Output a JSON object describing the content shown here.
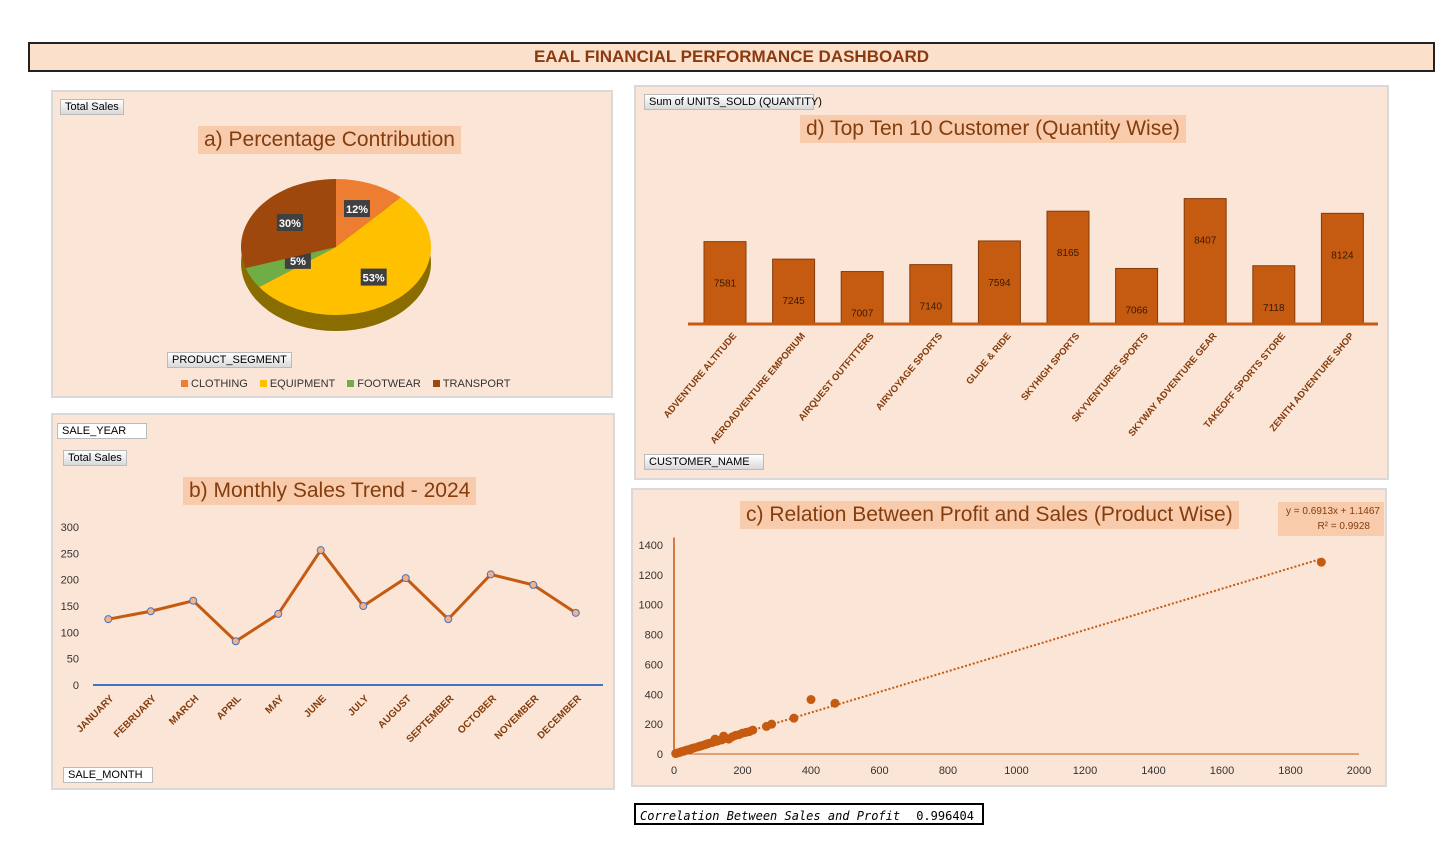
{
  "title": "EAAL FINANCIAL PERFORMANCE DASHBOARD",
  "correlation": {
    "label": "Correlation Between Sales and Profit",
    "value": "0.996404"
  },
  "fields": {
    "pie_value": "Total Sales",
    "pie_axis": "PRODUCT_SEGMENT",
    "line_filter": "SALE_YEAR",
    "line_value": "Total Sales",
    "line_axis": "SALE_MONTH",
    "bar_value": "Sum of UNITS_SOLD (QUANTITY)",
    "bar_axis": "CUSTOMER_NAME"
  },
  "chart_data": [
    {
      "type": "pie",
      "title": "a) Percentage Contribution",
      "categories": [
        "CLOTHING",
        "EQUIPMENT",
        "FOOTWEAR",
        "TRANSPORT"
      ],
      "values": [
        12,
        53,
        5,
        30
      ],
      "labels": [
        "12%",
        "53%",
        "5%",
        "30%"
      ],
      "colors": [
        "#ed7d31",
        "#ffc000",
        "#70ad47",
        "#9e480e"
      ],
      "legend": "bottom"
    },
    {
      "type": "line",
      "title": "b) Monthly Sales Trend -  2024",
      "categories": [
        "JANUARY",
        "FEBRUARY",
        "MARCH",
        "APRIL",
        "MAY",
        "JUNE",
        "JULY",
        "AUGUST",
        "SEPTEMBER",
        "OCTOBER",
        "NOVEMBER",
        "DECEMBER"
      ],
      "values": [
        125,
        140,
        160,
        83,
        135,
        256,
        150,
        203,
        125,
        210,
        190,
        137
      ],
      "ylim": [
        0,
        300
      ],
      "yticks": [
        0,
        50,
        100,
        150,
        200,
        250,
        300
      ],
      "color": "#c55a11"
    },
    {
      "type": "bar",
      "title": "d) Top Ten 10 Customer (Quantity Wise)",
      "categories": [
        "ADVENTURE ALTITUDE",
        "AEROADVENTURE EMPORIUM",
        "AIRQUEST OUTFITTERS",
        "AIRVOYAGE SPORTS",
        "GLIDE & RIDE",
        "SKYHIGH SPORTS",
        "SKYVENTURES SPORTS",
        "SKYWAY ADVENTURE GEAR",
        "TAKEOFF SPORTS STORE",
        "ZENITH ADVENTURE SHOP"
      ],
      "values": [
        7581,
        7245,
        7007,
        7140,
        7594,
        8165,
        7066,
        8407,
        7118,
        8124
      ],
      "ylim": [
        6000,
        8800
      ],
      "color": "#c55a11"
    },
    {
      "type": "scatter",
      "title": "c) Relation Between Profit and Sales (Product Wise)",
      "trendline": {
        "equation": "y = 0.6913x + 1.1467",
        "r2": "R² = 0.9928",
        "slope": 0.6913,
        "intercept": 1.1467
      },
      "xlim": [
        0,
        2000
      ],
      "ylim": [
        0,
        1400
      ],
      "xticks": [
        0,
        200,
        400,
        600,
        800,
        1000,
        1200,
        1400,
        1600,
        1800,
        2000
      ],
      "yticks": [
        0,
        200,
        400,
        600,
        800,
        1000,
        1200,
        1400
      ],
      "points": [
        [
          5,
          3
        ],
        [
          10,
          7
        ],
        [
          15,
          10
        ],
        [
          20,
          14
        ],
        [
          25,
          18
        ],
        [
          30,
          20
        ],
        [
          35,
          25
        ],
        [
          40,
          28
        ],
        [
          45,
          30
        ],
        [
          50,
          35
        ],
        [
          55,
          38
        ],
        [
          60,
          42
        ],
        [
          70,
          48
        ],
        [
          75,
          52
        ],
        [
          80,
          55
        ],
        [
          90,
          62
        ],
        [
          95,
          66
        ],
        [
          100,
          70
        ],
        [
          110,
          76
        ],
        [
          115,
          80
        ],
        [
          120,
          100
        ],
        [
          125,
          85
        ],
        [
          130,
          90
        ],
        [
          140,
          95
        ],
        [
          145,
          120
        ],
        [
          150,
          105
        ],
        [
          160,
          100
        ],
        [
          170,
          115
        ],
        [
          180,
          125
        ],
        [
          190,
          130
        ],
        [
          200,
          140
        ],
        [
          210,
          145
        ],
        [
          220,
          150
        ],
        [
          230,
          160
        ],
        [
          270,
          185
        ],
        [
          285,
          200
        ],
        [
          350,
          240
        ],
        [
          400,
          365
        ],
        [
          470,
          340
        ],
        [
          1890,
          1285
        ]
      ],
      "color": "#c55a11"
    }
  ]
}
